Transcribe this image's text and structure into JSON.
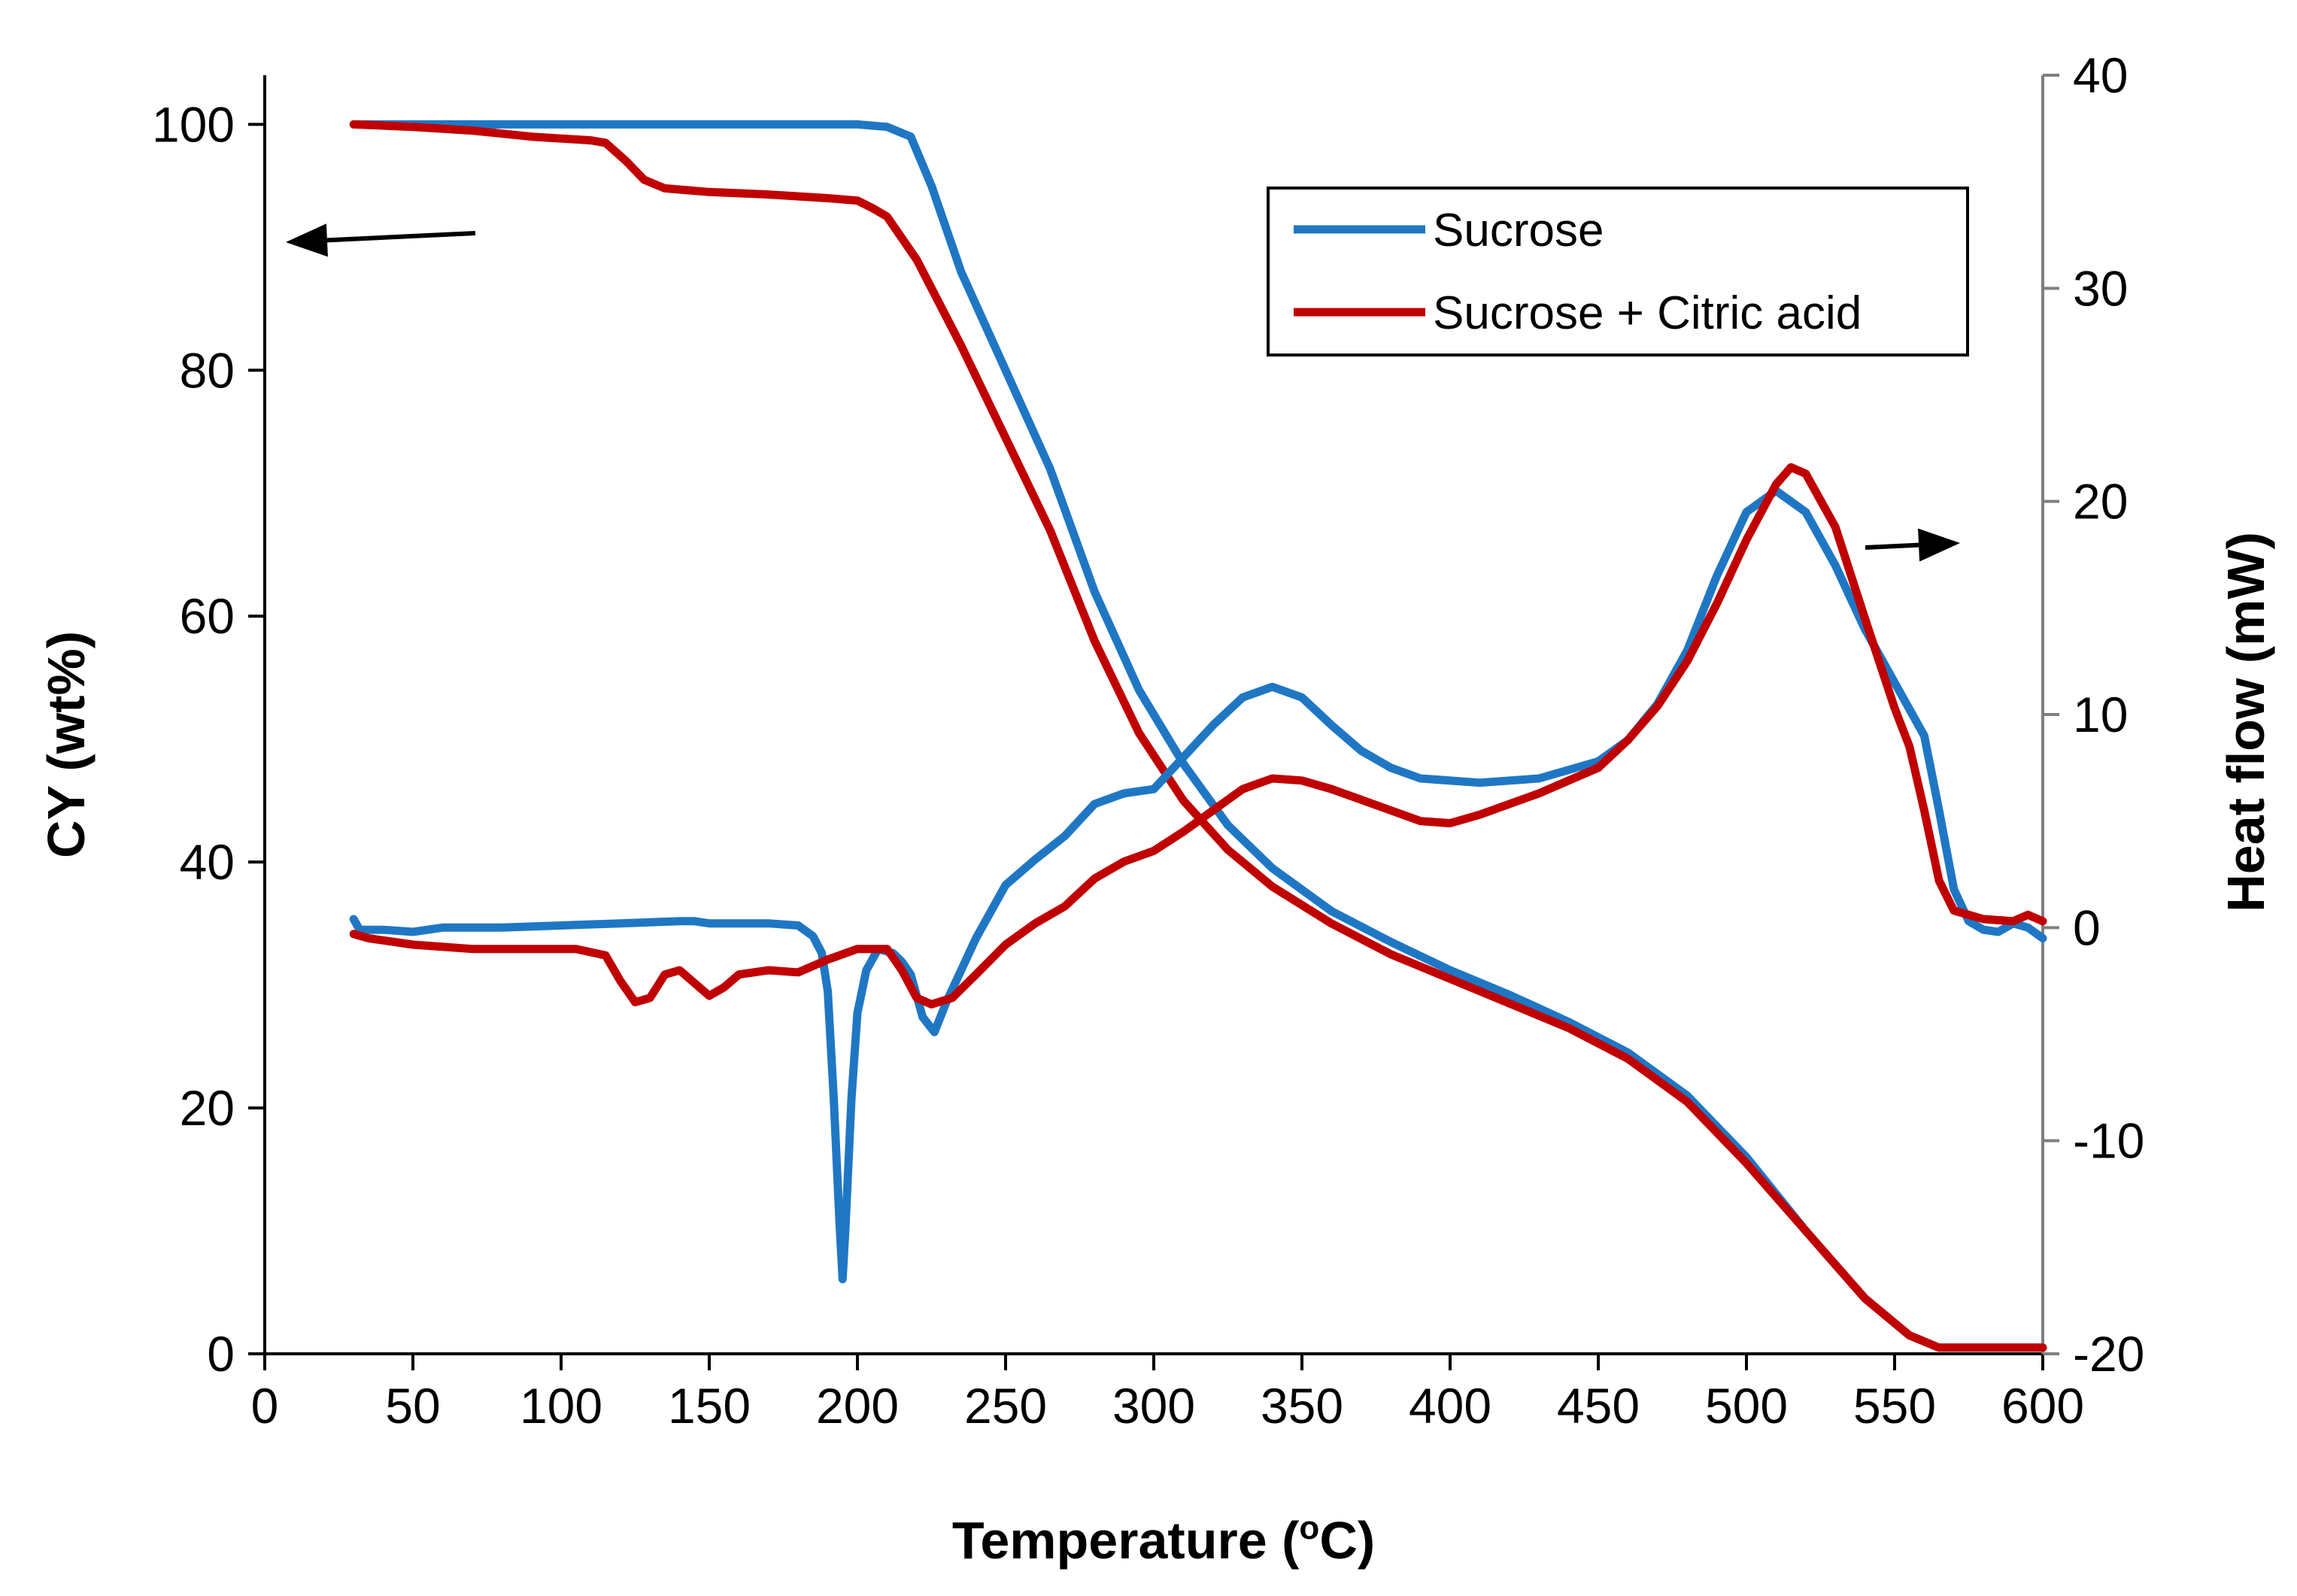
{
  "chart_data": {
    "type": "line",
    "xlabel": "Temperature (",
    "xlabel_sup": "o",
    "xlabel_end": "C)",
    "ylabel": "CY (wt%)",
    "y2label": "Heat flow (mW)",
    "xlim": [
      0,
      600
    ],
    "ylim": [
      0,
      104
    ],
    "y2lim": [
      -20,
      40
    ],
    "xticks": [
      "0",
      "50",
      "100",
      "150",
      "200",
      "250",
      "300",
      "350",
      "400",
      "450",
      "500",
      "550",
      "600"
    ],
    "yticks": [
      "0",
      "20",
      "40",
      "60",
      "80",
      "100"
    ],
    "y2ticks": [
      "-20",
      "-10",
      "0",
      "10",
      "20",
      "30",
      "40"
    ],
    "grid": false,
    "legend_position": "top-right",
    "series": [
      {
        "name": "Sucrose",
        "axis": "left",
        "color": "#1f77c4",
        "points": [
          [
            30,
            100
          ],
          [
            100,
            100
          ],
          [
            150,
            100
          ],
          [
            200,
            100
          ],
          [
            210,
            99.8
          ],
          [
            218,
            99
          ],
          [
            225,
            95
          ],
          [
            235,
            88
          ],
          [
            250,
            80
          ],
          [
            265,
            72
          ],
          [
            280,
            62
          ],
          [
            295,
            54
          ],
          [
            310,
            48
          ],
          [
            325,
            43
          ],
          [
            340,
            39.5
          ],
          [
            360,
            36
          ],
          [
            380,
            33.5
          ],
          [
            400,
            31.2
          ],
          [
            420,
            29.2
          ],
          [
            440,
            27
          ],
          [
            460,
            24.5
          ],
          [
            480,
            21
          ],
          [
            500,
            16
          ],
          [
            520,
            10
          ],
          [
            540,
            4.5
          ],
          [
            555,
            1.5
          ],
          [
            565,
            0.5
          ],
          [
            580,
            0.5
          ],
          [
            600,
            0.5
          ]
        ]
      },
      {
        "name": "Sucrose + Citric acid",
        "axis": "left",
        "color": "#c00000",
        "points": [
          [
            30,
            100
          ],
          [
            50,
            99.8
          ],
          [
            70,
            99.5
          ],
          [
            90,
            99
          ],
          [
            110,
            98.7
          ],
          [
            115,
            98.5
          ],
          [
            122,
            97
          ],
          [
            128,
            95.5
          ],
          [
            135,
            94.8
          ],
          [
            150,
            94.5
          ],
          [
            170,
            94.3
          ],
          [
            190,
            94
          ],
          [
            200,
            93.8
          ],
          [
            205,
            93.2
          ],
          [
            210,
            92.5
          ],
          [
            220,
            89
          ],
          [
            235,
            82
          ],
          [
            250,
            74.5
          ],
          [
            265,
            67
          ],
          [
            280,
            58
          ],
          [
            295,
            50.5
          ],
          [
            310,
            45
          ],
          [
            325,
            41
          ],
          [
            340,
            38
          ],
          [
            360,
            35
          ],
          [
            380,
            32.5
          ],
          [
            400,
            30.5
          ],
          [
            420,
            28.5
          ],
          [
            440,
            26.5
          ],
          [
            460,
            24
          ],
          [
            480,
            20.5
          ],
          [
            500,
            15.5
          ],
          [
            520,
            10
          ],
          [
            540,
            4.5
          ],
          [
            555,
            1.5
          ],
          [
            565,
            0.5
          ],
          [
            580,
            0.5
          ],
          [
            600,
            0.5
          ]
        ]
      },
      {
        "name": "Sucrose",
        "axis": "right",
        "color": "#1f77c4",
        "points": [
          [
            30,
            0.4
          ],
          [
            32,
            -0.1
          ],
          [
            40,
            -0.1
          ],
          [
            50,
            -0.2
          ],
          [
            60,
            0
          ],
          [
            80,
            0
          ],
          [
            100,
            0.1
          ],
          [
            120,
            0.2
          ],
          [
            140,
            0.3
          ],
          [
            145,
            0.3
          ],
          [
            150,
            0.2
          ],
          [
            170,
            0.2
          ],
          [
            180,
            0.1
          ],
          [
            185,
            -0.4
          ],
          [
            188,
            -1.2
          ],
          [
            190,
            -3
          ],
          [
            192,
            -8
          ],
          [
            194,
            -14
          ],
          [
            195,
            -16.5
          ],
          [
            196,
            -14
          ],
          [
            198,
            -8
          ],
          [
            200,
            -4
          ],
          [
            203,
            -2
          ],
          [
            207,
            -1
          ],
          [
            212,
            -1.2
          ],
          [
            215,
            -1.6
          ],
          [
            218,
            -2.2
          ],
          [
            222,
            -4.2
          ],
          [
            226,
            -4.9
          ],
          [
            230,
            -3.5
          ],
          [
            240,
            -0.5
          ],
          [
            250,
            2
          ],
          [
            260,
            3.2
          ],
          [
            270,
            4.3
          ],
          [
            280,
            5.8
          ],
          [
            290,
            6.3
          ],
          [
            300,
            6.5
          ],
          [
            310,
            8
          ],
          [
            320,
            9.5
          ],
          [
            330,
            10.8
          ],
          [
            340,
            11.3
          ],
          [
            350,
            10.8
          ],
          [
            360,
            9.5
          ],
          [
            370,
            8.3
          ],
          [
            380,
            7.5
          ],
          [
            390,
            7
          ],
          [
            410,
            6.8
          ],
          [
            430,
            7
          ],
          [
            450,
            7.8
          ],
          [
            460,
            8.8
          ],
          [
            470,
            10.5
          ],
          [
            480,
            13
          ],
          [
            490,
            16.5
          ],
          [
            500,
            19.5
          ],
          [
            510,
            20.5
          ],
          [
            520,
            19.5
          ],
          [
            530,
            17
          ],
          [
            540,
            14
          ],
          [
            550,
            11.5
          ],
          [
            560,
            9
          ],
          [
            565,
            5.5
          ],
          [
            570,
            1.8
          ],
          [
            575,
            0.3
          ],
          [
            580,
            -0.1
          ],
          [
            585,
            -0.2
          ],
          [
            590,
            0.2
          ],
          [
            595,
            0
          ],
          [
            600,
            -0.5
          ]
        ]
      },
      {
        "name": "Sucrose + Citric acid",
        "axis": "right",
        "color": "#c00000",
        "points": [
          [
            30,
            -0.3
          ],
          [
            35,
            -0.5
          ],
          [
            50,
            -0.8
          ],
          [
            70,
            -1
          ],
          [
            90,
            -1
          ],
          [
            105,
            -1
          ],
          [
            115,
            -1.3
          ],
          [
            120,
            -2.5
          ],
          [
            125,
            -3.5
          ],
          [
            130,
            -3.3
          ],
          [
            135,
            -2.2
          ],
          [
            140,
            -2
          ],
          [
            145,
            -2.6
          ],
          [
            150,
            -3.2
          ],
          [
            155,
            -2.8
          ],
          [
            160,
            -2.2
          ],
          [
            170,
            -2
          ],
          [
            180,
            -2.1
          ],
          [
            190,
            -1.5
          ],
          [
            200,
            -1
          ],
          [
            210,
            -1
          ],
          [
            215,
            -2
          ],
          [
            220,
            -3.3
          ],
          [
            225,
            -3.6
          ],
          [
            232,
            -3.3
          ],
          [
            240,
            -2.2
          ],
          [
            250,
            -0.8
          ],
          [
            260,
            0.2
          ],
          [
            270,
            1
          ],
          [
            280,
            2.3
          ],
          [
            290,
            3.1
          ],
          [
            300,
            3.6
          ],
          [
            310,
            4.5
          ],
          [
            320,
            5.5
          ],
          [
            330,
            6.5
          ],
          [
            340,
            7
          ],
          [
            350,
            6.9
          ],
          [
            360,
            6.5
          ],
          [
            370,
            6
          ],
          [
            380,
            5.5
          ],
          [
            390,
            5
          ],
          [
            400,
            4.9
          ],
          [
            410,
            5.3
          ],
          [
            420,
            5.8
          ],
          [
            430,
            6.3
          ],
          [
            440,
            6.9
          ],
          [
            450,
            7.5
          ],
          [
            460,
            8.8
          ],
          [
            470,
            10.4
          ],
          [
            480,
            12.5
          ],
          [
            490,
            15.2
          ],
          [
            500,
            18.2
          ],
          [
            510,
            20.8
          ],
          [
            515,
            21.6
          ],
          [
            520,
            21.3
          ],
          [
            530,
            18.8
          ],
          [
            540,
            14.5
          ],
          [
            550,
            10.3
          ],
          [
            555,
            8.5
          ],
          [
            560,
            5.5
          ],
          [
            565,
            2.2
          ],
          [
            570,
            0.8
          ],
          [
            580,
            0.4
          ],
          [
            590,
            0.3
          ],
          [
            595,
            0.6
          ],
          [
            600,
            0.3
          ]
        ]
      }
    ],
    "legend": [
      "Sucrose",
      "Sucrose + Citric acid"
    ]
  }
}
